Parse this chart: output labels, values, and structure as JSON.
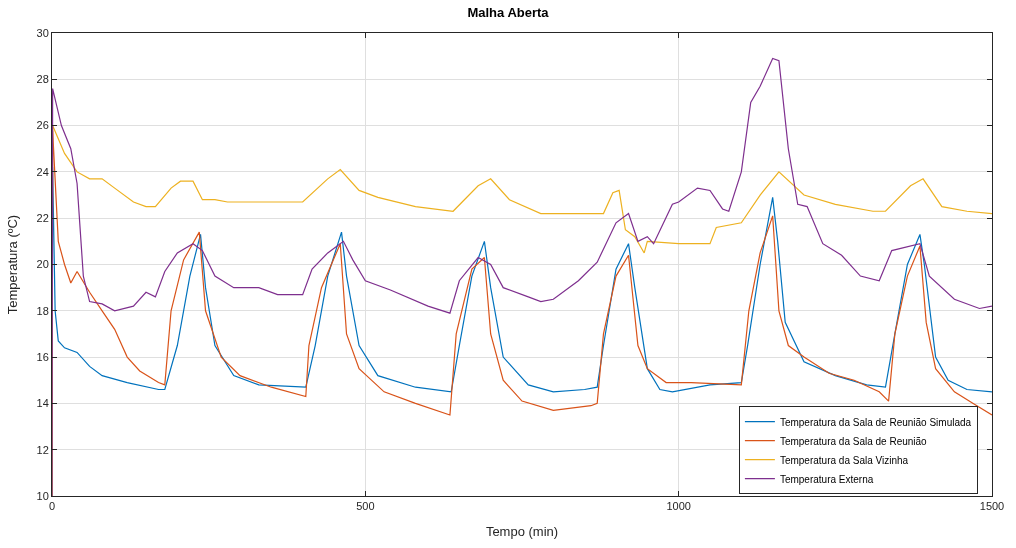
{
  "chart_data": {
    "type": "line",
    "title": "Malha Aberta",
    "xlabel": "Tempo (min)",
    "ylabel": "Temperatura (ºC)",
    "xlim": [
      0,
      1500
    ],
    "xticks": [
      0,
      500,
      1000,
      1500
    ],
    "ylim": [
      10,
      30
    ],
    "yticks": [
      10,
      12,
      14,
      16,
      18,
      20,
      22,
      24,
      26,
      28,
      30
    ],
    "grid": true,
    "legend": "bottom right",
    "marker": "none",
    "line_style": "solid",
    "series": [
      {
        "name": "Temperatura da Sala de Reunião Simulada",
        "color": "#0072bd",
        "x": [
          0,
          1,
          5,
          10,
          20,
          40,
          60,
          80,
          120,
          170,
          180,
          200,
          220,
          237,
          245,
          260,
          290,
          330,
          405,
          420,
          440,
          462,
          470,
          490,
          520,
          580,
          637,
          650,
          670,
          690,
          700,
          720,
          760,
          800,
          850,
          870,
          880,
          900,
          920,
          930,
          950,
          970,
          990,
          1050,
          1100,
          1110,
          1130,
          1150,
          1158,
          1170,
          1200,
          1250,
          1300,
          1330,
          1345,
          1365,
          1385,
          1392,
          1410,
          1430,
          1460,
          1500
        ],
        "values": [
          10,
          24.2,
          18,
          16.7,
          16.4,
          16.2,
          15.6,
          15.2,
          14.9,
          14.6,
          14.6,
          16.5,
          19.5,
          21.3,
          19,
          16.5,
          15.2,
          14.8,
          14.7,
          16.5,
          19.5,
          21.4,
          19.5,
          16.5,
          15.2,
          14.7,
          14.5,
          16.5,
          19.5,
          21,
          19,
          16,
          14.8,
          14.5,
          14.6,
          14.7,
          16.5,
          19.8,
          20.9,
          19,
          15.5,
          14.6,
          14.5,
          14.8,
          14.9,
          16.5,
          20,
          22.9,
          21,
          17.5,
          15.8,
          15.2,
          14.8,
          14.7,
          17,
          20,
          21.3,
          20,
          16,
          15,
          14.6,
          14.5
        ]
      },
      {
        "name": "Temperatura da Sala de Reunião",
        "color": "#d95319",
        "x": [
          0,
          1,
          10,
          20,
          30,
          40,
          60,
          80,
          100,
          120,
          140,
          170,
          180,
          190,
          210,
          235,
          245,
          270,
          300,
          350,
          405,
          410,
          430,
          460,
          470,
          490,
          530,
          580,
          635,
          645,
          670,
          690,
          700,
          720,
          750,
          800,
          860,
          870,
          880,
          900,
          920,
          935,
          950,
          980,
          1020,
          1100,
          1112,
          1130,
          1150,
          1160,
          1175,
          1200,
          1240,
          1280,
          1320,
          1335,
          1345,
          1365,
          1385,
          1395,
          1410,
          1440,
          1470,
          1500
        ],
        "values": [
          10,
          25.8,
          21,
          20,
          19.2,
          19.7,
          18.8,
          18,
          17.2,
          16,
          15.4,
          14.9,
          14.8,
          18,
          20.2,
          21.4,
          18,
          16,
          15.2,
          14.7,
          14.3,
          16.5,
          19,
          20.9,
          17,
          15.5,
          14.5,
          14,
          13.5,
          17,
          19.8,
          20.3,
          17,
          15,
          14.1,
          13.7,
          13.9,
          14,
          17,
          19.5,
          20.4,
          16.5,
          15.5,
          14.9,
          14.9,
          14.8,
          18,
          20.5,
          22.1,
          18,
          16.5,
          16,
          15.3,
          15,
          14.5,
          14.1,
          17,
          19.5,
          20.8,
          17.5,
          15.5,
          14.5,
          14,
          13.5
        ]
      },
      {
        "name": "Temperatura da Sala Vizinha",
        "color": "#edb120",
        "x": [
          0,
          1,
          20,
          40,
          60,
          80,
          100,
          130,
          150,
          165,
          190,
          205,
          225,
          240,
          260,
          280,
          400,
          440,
          460,
          490,
          520,
          580,
          640,
          680,
          700,
          730,
          780,
          880,
          895,
          905,
          915,
          930,
          945,
          950,
          1000,
          1050,
          1060,
          1100,
          1130,
          1160,
          1200,
          1250,
          1310,
          1330,
          1370,
          1390,
          1420,
          1460,
          1500
        ],
        "values": [
          10,
          26,
          24.8,
          24,
          23.7,
          23.7,
          23.3,
          22.7,
          22.5,
          22.5,
          23.3,
          23.6,
          23.6,
          22.8,
          22.8,
          22.7,
          22.7,
          23.7,
          24.1,
          23.2,
          22.9,
          22.5,
          22.3,
          23.4,
          23.7,
          22.8,
          22.2,
          22.2,
          23.1,
          23.2,
          21.5,
          21.2,
          20.5,
          21,
          20.9,
          20.9,
          21.6,
          21.8,
          23,
          24,
          23,
          22.6,
          22.3,
          22.3,
          23.4,
          23.7,
          22.5,
          22.3,
          22.2
        ]
      },
      {
        "name": "Temperatura Externa",
        "color": "#7e2f8e",
        "x": [
          0,
          1,
          15,
          30,
          40,
          50,
          60,
          80,
          100,
          130,
          150,
          165,
          180,
          200,
          225,
          240,
          260,
          290,
          330,
          360,
          400,
          415,
          440,
          465,
          480,
          500,
          540,
          600,
          635,
          650,
          680,
          700,
          720,
          760,
          780,
          800,
          840,
          870,
          900,
          920,
          935,
          950,
          960,
          990,
          1000,
          1030,
          1050,
          1070,
          1080,
          1100,
          1115,
          1130,
          1150,
          1160,
          1175,
          1190,
          1205,
          1230,
          1260,
          1290,
          1320,
          1340,
          1385,
          1400,
          1440,
          1480,
          1500
        ],
        "values": [
          10,
          27.6,
          26,
          25,
          23.5,
          19.5,
          18.4,
          18.3,
          18,
          18.2,
          18.8,
          18.6,
          19.7,
          20.5,
          20.9,
          20.6,
          19.5,
          19,
          19,
          18.7,
          18.7,
          19.8,
          20.5,
          21,
          20.2,
          19.3,
          18.9,
          18.2,
          17.9,
          19.3,
          20.3,
          20,
          19,
          18.6,
          18.4,
          18.5,
          19.3,
          20.1,
          21.8,
          22.2,
          21,
          21.2,
          20.9,
          22.6,
          22.7,
          23.3,
          23.2,
          22.4,
          22.3,
          24,
          27,
          27.7,
          28.9,
          28.8,
          25,
          22.6,
          22.5,
          20.9,
          20.4,
          19.5,
          19.3,
          20.6,
          20.9,
          19.5,
          18.5,
          18.1,
          18.2
        ]
      }
    ]
  }
}
